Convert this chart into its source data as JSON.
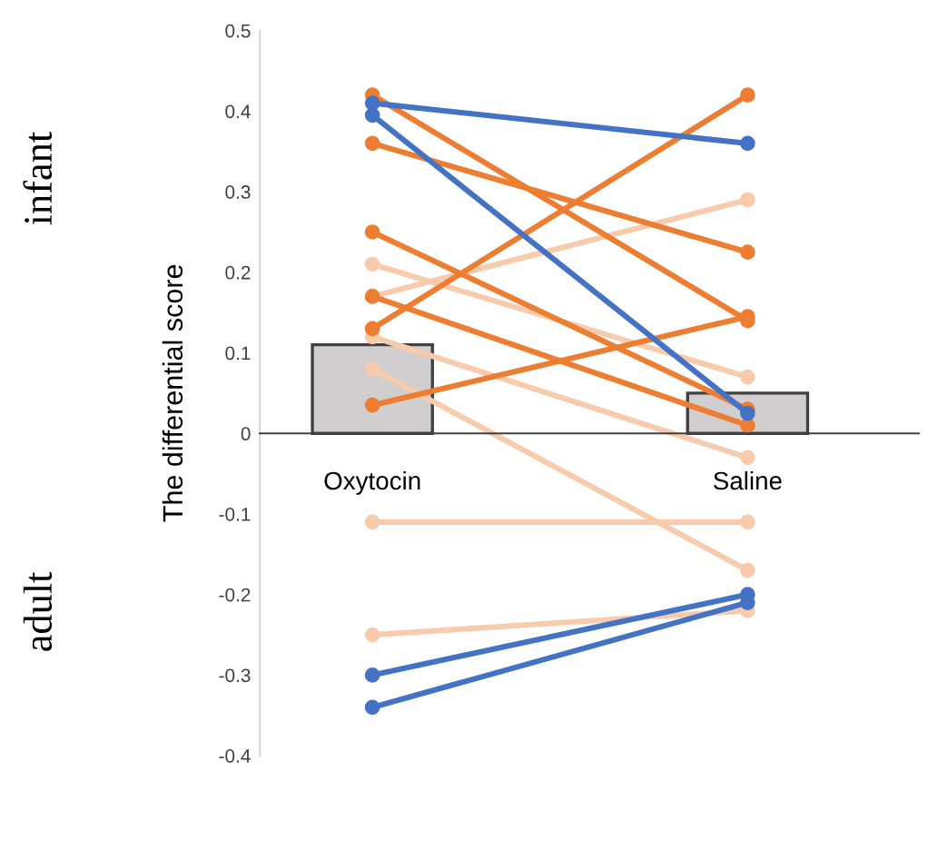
{
  "chart_data": {
    "type": "bar",
    "ylabel": "The differential score",
    "categories": [
      "Oxytocin",
      "Saline"
    ],
    "ylim": [
      -0.4,
      0.5
    ],
    "yticks": [
      -0.4,
      -0.3,
      -0.2,
      -0.1,
      0,
      0.1,
      0.2,
      0.3,
      0.4,
      0.5
    ],
    "grid": false,
    "legend": false,
    "marker": "circle",
    "annotations": [
      "infant",
      "adult"
    ],
    "series": [
      {
        "color": "#d0cece",
        "values": [
          0.11,
          0.05
        ]
      },
      {
        "type": "line",
        "color": "#f8cbad",
        "values": [
          0.21,
          0.07
        ]
      },
      {
        "type": "line",
        "color": "#f8cbad",
        "values": [
          0.17,
          0.29
        ]
      },
      {
        "type": "line",
        "color": "#f8cbad",
        "values": [
          0.12,
          -0.03
        ]
      },
      {
        "type": "line",
        "color": "#f8cbad",
        "values": [
          0.08,
          -0.17
        ]
      },
      {
        "type": "line",
        "color": "#f8cbad",
        "values": [
          -0.11,
          -0.11
        ]
      },
      {
        "type": "line",
        "color": "#f8cbad",
        "values": [
          -0.25,
          -0.22
        ]
      },
      {
        "type": "line",
        "color": "#ed7d31",
        "values": [
          0.42,
          0.14
        ]
      },
      {
        "type": "line",
        "color": "#ed7d31",
        "values": [
          0.36,
          0.225
        ]
      },
      {
        "type": "line",
        "color": "#ed7d31",
        "values": [
          0.25,
          0.03
        ]
      },
      {
        "type": "line",
        "color": "#ed7d31",
        "values": [
          0.17,
          0.01
        ]
      },
      {
        "type": "line",
        "color": "#ed7d31",
        "values": [
          0.13,
          0.42
        ]
      },
      {
        "type": "line",
        "color": "#ed7d31",
        "values": [
          0.035,
          0.145
        ]
      },
      {
        "type": "line",
        "color": "#4472c4",
        "values": [
          0.41,
          0.36
        ]
      },
      {
        "type": "line",
        "color": "#4472c4",
        "values": [
          0.395,
          0.025
        ]
      },
      {
        "type": "line",
        "color": "#4472c4",
        "values": [
          -0.3,
          -0.2
        ]
      },
      {
        "type": "line",
        "color": "#4472c4",
        "values": [
          -0.34,
          -0.21
        ]
      }
    ]
  }
}
